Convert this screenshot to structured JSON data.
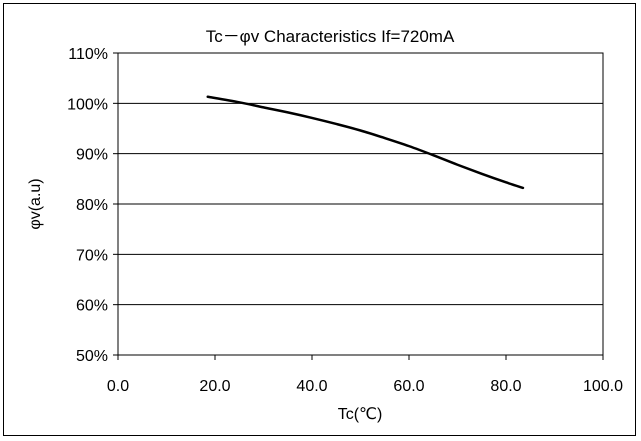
{
  "chart_data": {
    "type": "line",
    "title": "Tc－φv  Characteristics      If=720mA",
    "xlabel": "Tc(℃)",
    "ylabel": "φv(a.u)",
    "xlim": [
      0,
      100
    ],
    "ylim": [
      50,
      110
    ],
    "x_ticks": [
      "0.0",
      "20.0",
      "40.0",
      "60.0",
      "80.0",
      "100.0"
    ],
    "y_ticks": [
      "50%",
      "60%",
      "70%",
      "80%",
      "90%",
      "100%",
      "110%"
    ],
    "grid": "horizontal",
    "line_color": "#000000",
    "series": [
      {
        "x": [
          18.5,
          25,
          30,
          35,
          40,
          45,
          50,
          55,
          60,
          65,
          70,
          75,
          80,
          83.5
        ],
        "values": [
          101.3,
          100.2,
          99.2,
          98.2,
          97.1,
          95.9,
          94.6,
          93.1,
          91.5,
          89.7,
          87.8,
          86.0,
          84.3,
          83.2
        ]
      }
    ]
  }
}
